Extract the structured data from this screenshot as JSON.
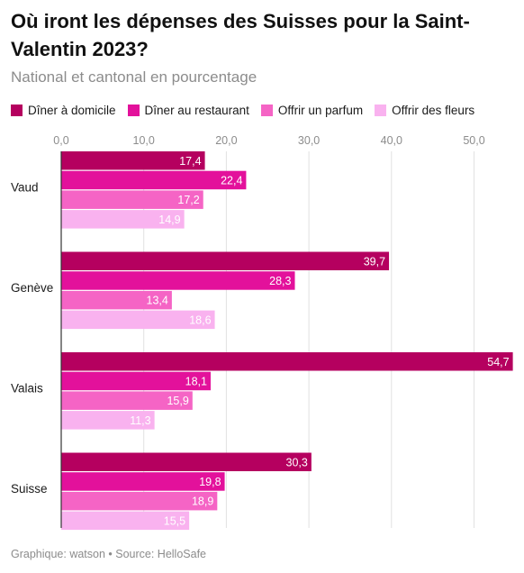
{
  "title": "Où iront les dépenses des Suisses pour la Saint-Valentin 2023?",
  "subtitle": "National et cantonal en pourcentage",
  "footer": "Graphique: watson • Source: HelloSafe",
  "chart_data": {
    "type": "bar",
    "orientation": "horizontal",
    "title": "Où iront les dépenses des Suisses pour la Saint-Valentin 2023?",
    "subtitle": "National et cantonal en pourcentage",
    "categories": [
      "Vaud",
      "Genève",
      "Valais",
      "Suisse"
    ],
    "series": [
      {
        "name": "Dîner à domicile",
        "color": "#b5005f",
        "values": [
          17.4,
          39.7,
          54.7,
          30.3
        ]
      },
      {
        "name": "Dîner au restaurant",
        "color": "#e3119b",
        "values": [
          22.4,
          28.3,
          18.1,
          19.8
        ]
      },
      {
        "name": "Offrir un parfum",
        "color": "#f564c5",
        "values": [
          17.2,
          13.4,
          15.9,
          18.9
        ]
      },
      {
        "name": "Offrir des fleurs",
        "color": "#f9b2ef",
        "values": [
          14.9,
          18.6,
          11.3,
          15.5
        ]
      }
    ],
    "xlim": [
      0,
      55
    ],
    "xticks": [
      0,
      10,
      20,
      30,
      40,
      50
    ],
    "xtick_labels": [
      "0,0",
      "10,0",
      "20,0",
      "30,0",
      "40,0",
      "50,0"
    ],
    "grid": true,
    "legend": "top-left",
    "decimal_separator": ","
  }
}
